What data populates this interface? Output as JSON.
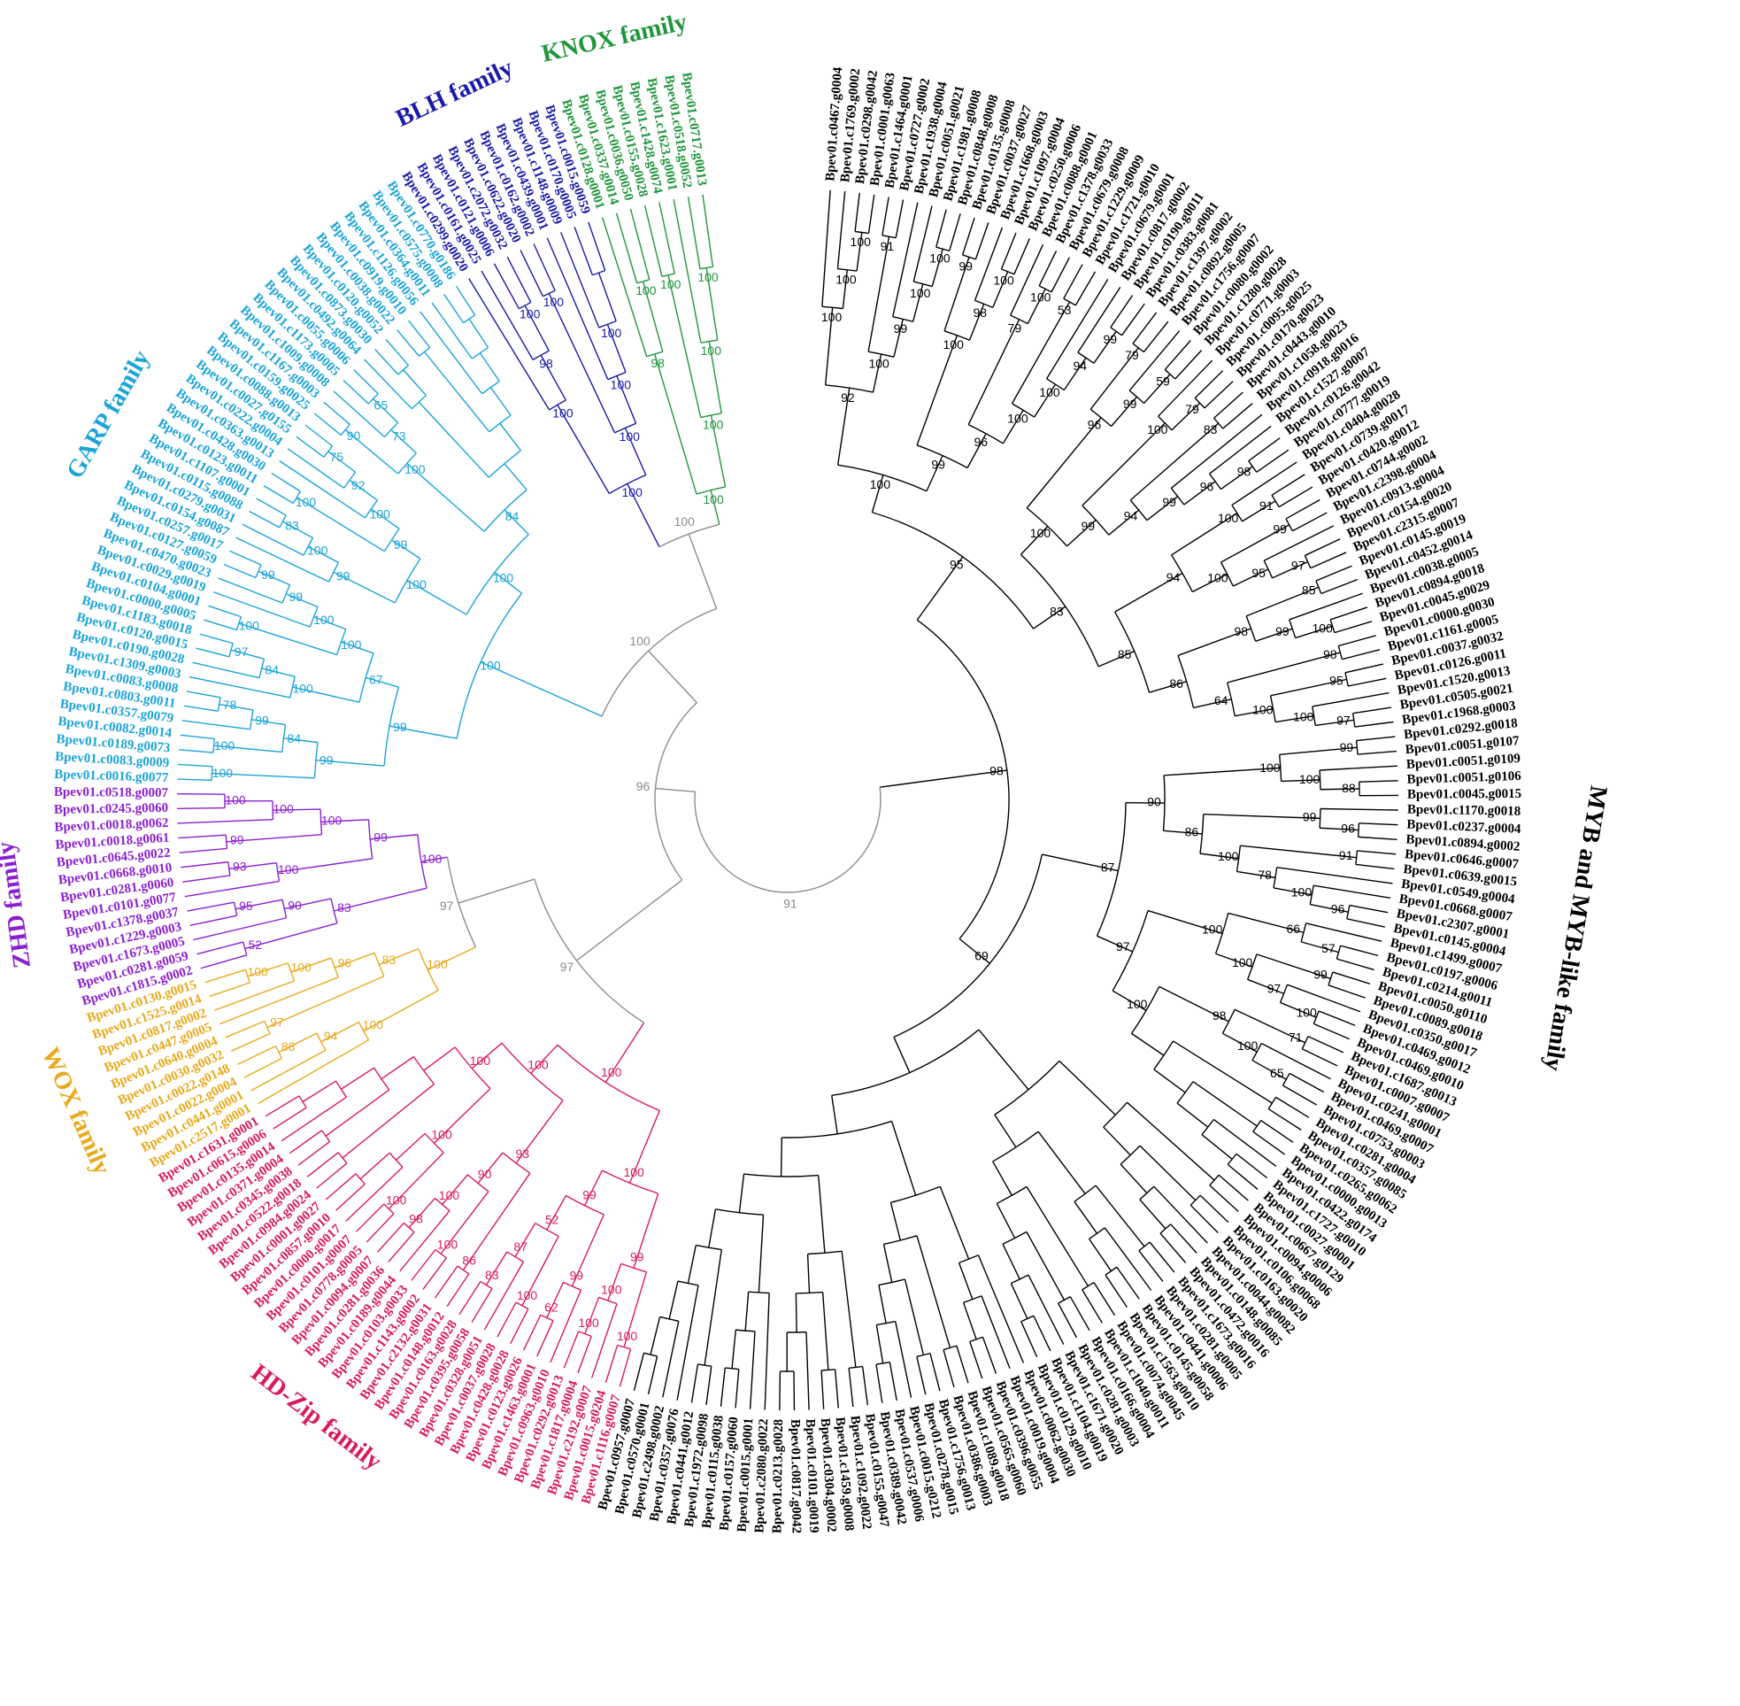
{
  "families": [
    {
      "name": "MYB and MYB-like family",
      "color": "#000000",
      "leaves": [
        "Bpev01.c0467.g0004",
        "Bpev01.c1769.g0002",
        "Bpev01.c0298.g0042",
        "Bpev01.c0001.g0063",
        "Bpev01.c1464.g0001",
        "Bpev01.c0727.g0002",
        "Bpev01.c1938.g0004",
        "Bpev01.c0051.g0021",
        "Bpev01.c1981.g0008",
        "Bpev01.c0848.g0008",
        "Bpev01.c0135.g0008",
        "Bpev01.c0037.g0027",
        "Bpev01.c1668.g0003",
        "Bpev01.c1097.g0004",
        "Bpev01.c0250.g0006",
        "Bpev01.c0088.g0001",
        "Bpev01.c1378.g0033",
        "Bpev01.c0679.g0008",
        "Bpev01.c1229.g0009",
        "Bpev01.c1721.g0010",
        "Bpev01.c0679.g0001",
        "Bpev01.c0817.g0002",
        "Bpev01.c0190.g0011",
        "Bpev01.c0383.g0081",
        "Bpev01.c1397.g0002",
        "Bpev01.c0892.g0005",
        "Bpev01.c1756.g0007",
        "Bpev01.c0080.g0002",
        "Bpev01.c1280.g0028",
        "Bpev01.c0771.g0003",
        "Bpev01.c0095.g0025",
        "Bpev01.c0170.g0023",
        "Bpev01.c0443.g0010",
        "Bpev01.c1058.g0023",
        "Bpev01.c0918.g0016",
        "Bpev01.c1527.g0007",
        "Bpev01.c0126.g0042",
        "Bpev01.c0777.g0019",
        "Bpev01.c0404.g0028",
        "Bpev01.c0739.g0017",
        "Bpev01.c0420.g0012",
        "Bpev01.c0744.g0002",
        "Bpev01.c2398.g0004",
        "Bpev01.c0913.g0004",
        "Bpev01.c0154.g0020",
        "Bpev01.c2315.g0007",
        "Bpev01.c0145.g0019",
        "Bpev01.c0452.g0014",
        "Bpev01.c0038.g0005",
        "Bpev01.c0894.g0018",
        "Bpev01.c0045.g0029",
        "Bpev01.c0000.g0030",
        "Bpev01.c1161.g0005",
        "Bpev01.c0037.g0032",
        "Bpev01.c0126.g0011",
        "Bpev01.c1520.g0013",
        "Bpev01.c0505.g0021",
        "Bpev01.c1968.g0003",
        "Bpev01.c0292.g0018",
        "Bpev01.c0051.g0107",
        "Bpev01.c0051.g0109",
        "Bpev01.c0051.g0106",
        "Bpev01.c0045.g0015",
        "Bpev01.c1170.g0018",
        "Bpev01.c0237.g0004",
        "Bpev01.c0894.g0002",
        "Bpev01.c0646.g0007",
        "Bpev01.c0639.g0015",
        "Bpev01.c0549.g0004",
        "Bpev01.c0668.g0007",
        "Bpev01.c2307.g0001",
        "Bpev01.c0145.g0004",
        "Bpev01.c1499.g0007",
        "Bpev01.c0197.g0006",
        "Bpev01.c0214.g0011",
        "Bpev01.c0050.g0110",
        "Bpev01.c0089.g0018",
        "Bpev01.c0350.g0017",
        "Bpev01.c0469.g0012",
        "Bpev01.c0469.g0010",
        "Bpev01.c1687.g0013",
        "Bpev01.c0007.g0007",
        "Bpev01.c0241.g0001",
        "Bpev01.c0469.g0007",
        "Bpev01.c0753.g0003",
        "Bpev01.c0281.g0004",
        "Bpev01.c0357.g0085",
        "Bpev01.c0265.g0062",
        "Bpev01.c0000.g0013",
        "Bpev01.c0422.g0174",
        "Bpev01.c1727.g0010",
        "Bpev01.c0027.g0001",
        "Bpev01.c0667.g0129",
        "Bpev01.c0094.g0006",
        "Bpev01.c0106.g0068",
        "Bpev01.c0163.g0020",
        "Bpev01.c0044.g0082",
        "Bpev01.c0148.g0085",
        "Bpev01.c0472.g0016",
        "Bpev01.c1673.g0016",
        "Bpev01.c0281.g0005",
        "Bpev01.c0441.g0006",
        "Bpev01.c0145.g0058",
        "Bpev01.c1563.g0010",
        "Bpev01.c0074.g0045",
        "Bpev01.c1040.g0011",
        "Bpev01.c0166.g0004",
        "Bpev01.c0281.g0003",
        "Bpev01.c1671.g0020",
        "Bpev01.c1104.g0019",
        "Bpev01.c0129.g0010",
        "Bpev01.c0062.g0030",
        "Bpev01.c0019.g0004",
        "Bpev01.c0396.g0055",
        "Bpev01.c0565.g0060",
        "Bpev01.c1089.g0018",
        "Bpev01.c0386.g0003",
        "Bpev01.c1756.g0013",
        "Bpev01.c0278.g0015",
        "Bpev01.c0015.g0212",
        "Bpev01.c0537.g0006",
        "Bpev01.c0389.g0042",
        "Bpev01.c0155.g0047",
        "Bpev01.c1092.g0022",
        "Bpev01.c1459.g0008",
        "Bpev01.c0304.g0002",
        "Bpev01.c0101.g0019",
        "Bpev01.c0817.g0042",
        "Bpev01.c0213.g0028",
        "Bpev01.c2080.g0022",
        "Bpev01.c0015.g0001",
        "Bpev01.c0157.g0060",
        "Bpev01.c0115.g0038",
        "Bpev01.c1972.g0098",
        "Bpev01.c0441.g0012",
        "Bpev01.c0357.g0076",
        "Bpev01.c2498.g0002",
        "Bpev01.c0570.g0001",
        "Bpev01.c0957.g0007"
      ],
      "bootstrap": [
        98,
        95,
        100,
        92,
        100,
        100,
        100,
        100,
        91,
        99,
        100,
        100,
        99,
        100,
        99,
        98,
        100,
        96,
        79,
        100,
        100,
        53,
        100,
        94,
        99,
        83,
        100,
        96,
        79,
        99,
        59,
        99,
        100,
        79,
        94,
        83,
        99,
        96,
        98,
        85,
        94,
        100,
        91,
        100,
        99,
        95,
        97,
        86,
        98,
        85,
        99,
        100,
        64,
        98,
        100,
        95,
        100,
        97,
        69,
        87,
        90,
        100,
        99,
        100,
        88,
        86,
        99,
        96,
        100,
        91,
        78,
        100,
        96,
        97,
        100,
        66,
        57,
        100,
        99,
        97,
        100,
        100,
        98,
        71,
        100,
        65
      ]
    },
    {
      "name": "HD-Zip family",
      "color": "#d81b5b",
      "leaves": [
        "Bpev01.c1116.g0007",
        "Bpev01.c0015.g0204",
        "Bpev01.c2192.g0007",
        "Bpev01.c1817.g0004",
        "Bpev01.c0292.g0013",
        "Bpev01.c0963.g0010",
        "Bpev01.c1463.g0001",
        "Bpev01.c0123.g0026",
        "Bpev01.c0428.g0028",
        "Bpev01.c0037.g0028",
        "Bpev01.c0328.g0051",
        "Bpev01.c0395.g0058",
        "Bpev01.c0163.g0028",
        "Bpev01.c0148.g0012",
        "Bpev01.c2132.g0031",
        "Bpev01.c1143.g0002",
        "Bpev01.c0103.g0033",
        "Bpev01.c0189.g0044",
        "Bpev01.c0281.g0036",
        "Bpev01.c0094.g0007",
        "Bpev01.c0778.g0005",
        "Bpev01.c0101.g0007",
        "Bpev01.c0000.g0017",
        "Bpev01.c0857.g0010",
        "Bpev01.c0001.g0027",
        "Bpev01.c0984.g0024",
        "Bpev01.c0522.g0018",
        "Bpev01.c0345.g0038",
        "Bpev01.c0371.g0004",
        "Bpev01.c0135.g0014",
        "Bpev01.c0615.g0006",
        "Bpev01.c1631.g0001"
      ],
      "bootstrap": [
        100,
        100,
        99,
        100,
        100,
        100,
        99,
        99,
        62,
        52,
        100,
        87,
        83,
        100,
        93,
        86,
        90,
        100,
        100,
        98,
        100,
        100,
        100
      ]
    },
    {
      "name": "WOX family",
      "color": "#e8a91c",
      "leaves": [
        "Bpev01.c2517.g0001",
        "Bpev01.c0441.g0001",
        "Bpev01.c0022.g0004",
        "Bpev01.c0022.g0148",
        "Bpev01.c0030.g0032",
        "Bpev01.c0640.g0004",
        "Bpev01.c0447.g0005",
        "Bpev01.c0817.g0002",
        "Bpev01.c1525.g0014",
        "Bpev01.c0130.g0015"
      ],
      "bootstrap": [
        100,
        100,
        94,
        88,
        83,
        97,
        96,
        100,
        100
      ]
    },
    {
      "name": "ZHD family",
      "color": "#8b1fd2",
      "leaves": [
        "Bpev01.c1815.g0002",
        "Bpev01.c0281.g0059",
        "Bpev01.c1673.g0005",
        "Bpev01.c1229.g0003",
        "Bpev01.c1378.g0037",
        "Bpev01.c0101.g0077",
        "Bpev01.c0281.g0060",
        "Bpev01.c0668.g0010",
        "Bpev01.c0645.g0022",
        "Bpev01.c0018.g0061",
        "Bpev01.c0018.g0062",
        "Bpev01.c0245.g0060",
        "Bpev01.c0518.g0007"
      ],
      "bootstrap": [
        100,
        83,
        52,
        90,
        95,
        99,
        100,
        93,
        100,
        99,
        100,
        100
      ]
    },
    {
      "name": "GARP family",
      "color": "#1ba4d8",
      "leaves": [
        "Bpev01.c0016.g0077",
        "Bpev01.c0083.g0009",
        "Bpev01.c0189.g0073",
        "Bpev01.c0082.g0014",
        "Bpev01.c0357.g0079",
        "Bpev01.c0803.g0011",
        "Bpev01.c0083.g0008",
        "Bpev01.c1309.g0003",
        "Bpev01.c0190.g0028",
        "Bpev01.c0120.g0015",
        "Bpev01.c1183.g0018",
        "Bpev01.c0000.g0005",
        "Bpev01.c0104.g0001",
        "Bpev01.c0029.g0019",
        "Bpev01.c0470.g0023",
        "Bpev01.c0127.g0059",
        "Bpev01.c0257.g0017",
        "Bpev01.c0154.g0087",
        "Bpev01.c0279.g0031",
        "Bpev01.c0115.g0088",
        "Bpev01.c1107.g0001",
        "Bpev01.c0123.g0011",
        "Bpev01.c0428.g0030",
        "Bpev01.c0363.g0013",
        "Bpev01.c0222.g0004",
        "Bpev01.c0027.g0155",
        "Bpev01.c0088.g0013",
        "Bpev01.c0159.g0025",
        "Bpev01.c1167.g0003",
        "Bpev01.c1009.g0008",
        "Bpev01.c1173.g0005",
        "Bpev01.c0055.g0006",
        "Bpev01.c0492.g0064",
        "Bpev01.c0873.g0030",
        "Bpev01.c0120.g0052",
        "Bpev01.c0038.g0022",
        "Bpev01.c0919.g0010",
        "Bpev01.c1126.g0056",
        "Bpev01.c0364.g0011",
        "Bpev01.c0575.g0008",
        "Bpev01.c0770.g0186"
      ],
      "bootstrap": [
        100,
        99,
        99,
        100,
        84,
        100,
        99,
        78,
        67,
        100,
        84,
        97,
        100,
        100,
        100,
        99,
        99,
        100,
        100,
        99,
        100,
        83,
        99,
        100,
        100,
        92,
        75,
        84,
        100,
        90,
        73,
        65
      ]
    },
    {
      "name": "BLH family",
      "color": "#1a1aa8",
      "leaves": [
        "Bpev01.c0299.g0020",
        "Bpev01.c0161.g0025",
        "Bpev01.c0121.g0006",
        "Bpev01.c2072.g0032",
        "Bpev01.c0622.g0020",
        "Bpev01.c0162.g0002",
        "Bpev01.c0439.g0001",
        "Bpev01.c1148.g0009",
        "Bpev01.c0170.g0005",
        "Bpev01.c0015.g0059"
      ],
      "bootstrap": [
        100,
        100,
        98,
        100,
        100,
        100,
        100,
        100
      ]
    },
    {
      "name": "KNOX family",
      "color": "#20963c",
      "leaves": [
        "Bpev01.c0128.g0001",
        "Bpev01.c0337.g0014",
        "Bpev01.c0036.g0050",
        "Bpev01.c0155.g0028",
        "Bpev01.c1428.g0074",
        "Bpev01.c1623.g0001",
        "Bpev01.c0518.g0052",
        "Bpev01.c0717.g0013"
      ],
      "bootstrap": [
        100,
        98,
        100,
        100,
        100,
        100,
        100
      ]
    }
  ],
  "backbone_color": "#8c8c8c",
  "backbone_support": [
    100,
    97,
    100,
    97,
    96,
    91
  ]
}
